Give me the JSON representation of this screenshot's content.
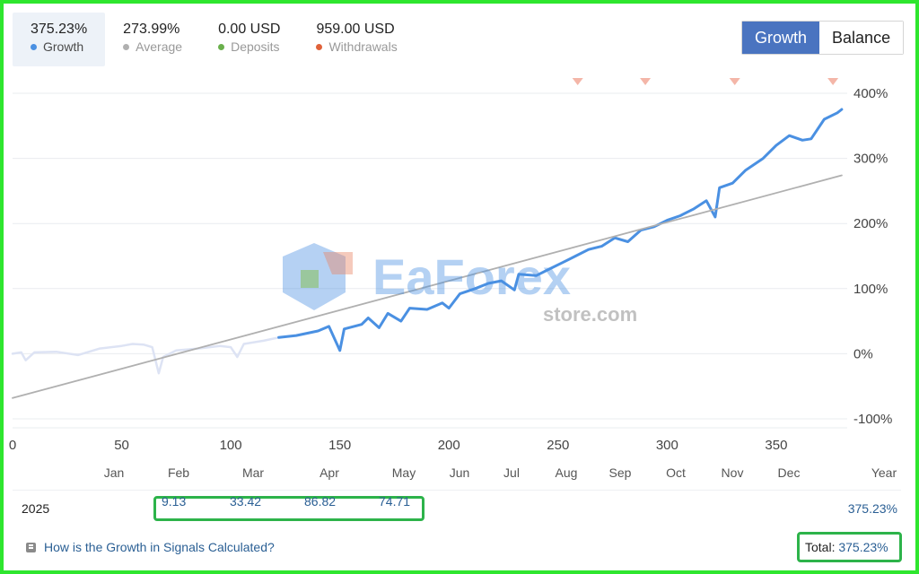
{
  "stats": [
    {
      "value": "375.23%",
      "label": "Growth",
      "color": "#4a90e2"
    },
    {
      "value": "273.99%",
      "label": "Average",
      "color": "#b0b0b0"
    },
    {
      "value": "0.00 USD",
      "label": "Deposits",
      "color": "#6ab04c"
    },
    {
      "value": "959.00 USD",
      "label": "Withdrawals",
      "color": "#e0623a"
    }
  ],
  "toggle": {
    "growth": "Growth",
    "balance": "Balance"
  },
  "watermark": {
    "main": "EaForex",
    "sub": "store.com"
  },
  "chart_data": {
    "type": "line",
    "xlabel": "",
    "ylabel": "",
    "xlim": [
      0,
      380
    ],
    "ylim": [
      -100,
      400
    ],
    "x_ticks": [
      0,
      50,
      100,
      150,
      200,
      250,
      300,
      350
    ],
    "y_ticks": [
      400,
      300,
      200,
      100,
      0,
      -100
    ],
    "y_tick_labels": [
      "400%",
      "300%",
      "200%",
      "100%",
      "0%",
      "-100%"
    ],
    "months": [
      "Jan",
      "Feb",
      "Mar",
      "Apr",
      "May",
      "Jun",
      "Jul",
      "Aug",
      "Sep",
      "Oct",
      "Nov",
      "Dec",
      "Year"
    ],
    "withdrawal_markers_x": [
      259,
      290,
      331,
      376
    ],
    "grid": true,
    "series": [
      {
        "color": "#dde3f4",
        "points": [
          [
            0,
            0
          ],
          [
            4,
            2
          ],
          [
            6,
            -10
          ],
          [
            10,
            2
          ],
          [
            20,
            3
          ],
          [
            30,
            -2
          ],
          [
            40,
            8
          ],
          [
            50,
            12
          ],
          [
            55,
            15
          ],
          [
            60,
            14
          ],
          [
            64,
            10
          ],
          [
            67,
            -30
          ],
          [
            69,
            -5
          ],
          [
            75,
            5
          ],
          [
            85,
            8
          ],
          [
            95,
            12
          ],
          [
            100,
            10
          ],
          [
            103,
            -5
          ],
          [
            106,
            15
          ],
          [
            115,
            20
          ],
          [
            122,
            25
          ]
        ]
      },
      {
        "color": "#4a90e2",
        "points": [
          [
            122,
            25
          ],
          [
            130,
            28
          ],
          [
            140,
            35
          ],
          [
            145,
            42
          ],
          [
            150,
            5
          ],
          [
            152,
            38
          ],
          [
            160,
            45
          ],
          [
            163,
            55
          ],
          [
            168,
            40
          ],
          [
            172,
            62
          ],
          [
            178,
            50
          ],
          [
            182,
            70
          ],
          [
            190,
            68
          ],
          [
            197,
            78
          ],
          [
            200,
            70
          ],
          [
            205,
            92
          ],
          [
            212,
            100
          ],
          [
            218,
            108
          ],
          [
            224,
            112
          ],
          [
            230,
            98
          ],
          [
            232,
            122
          ],
          [
            240,
            120
          ],
          [
            246,
            130
          ],
          [
            252,
            140
          ],
          [
            258,
            150
          ],
          [
            264,
            160
          ],
          [
            270,
            165
          ],
          [
            276,
            178
          ],
          [
            282,
            172
          ],
          [
            288,
            190
          ],
          [
            294,
            195
          ],
          [
            300,
            205
          ],
          [
            306,
            212
          ],
          [
            312,
            222
          ],
          [
            318,
            235
          ],
          [
            322,
            210
          ],
          [
            324,
            255
          ],
          [
            330,
            262
          ],
          [
            336,
            282
          ],
          [
            344,
            300
          ],
          [
            350,
            320
          ],
          [
            356,
            335
          ],
          [
            362,
            328
          ],
          [
            366,
            330
          ],
          [
            372,
            360
          ],
          [
            378,
            370
          ],
          [
            380,
            375.23
          ]
        ]
      },
      {
        "color": "#b0b0b0",
        "points": [
          [
            0,
            -68
          ],
          [
            380,
            273.99
          ]
        ]
      }
    ]
  },
  "year_row": {
    "year": "2025",
    "months": [
      {
        "value": "9.13",
        "pos": 1
      },
      {
        "value": "33.42",
        "pos": 2
      },
      {
        "value": "86.82",
        "pos": 3
      },
      {
        "value": "74.71",
        "pos": 4
      }
    ],
    "total": "375.23%"
  },
  "footer": {
    "help_text": "How is the Growth in Signals Calculated?",
    "total_label": "Total:",
    "total_value": "375.23%"
  }
}
